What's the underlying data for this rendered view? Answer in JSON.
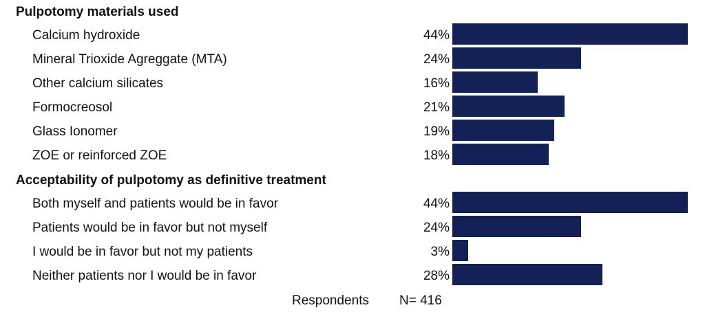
{
  "chart_data": {
    "type": "bar",
    "orientation": "horizontal",
    "bar_color": "#132157",
    "xlim": [
      0,
      44
    ],
    "sections": [
      {
        "title": "Pulpotomy materials used",
        "rows": [
          {
            "label": "Calcium hydroxide",
            "value": 44,
            "value_label": "44%"
          },
          {
            "label": "Mineral Trioxide Agreggate (MTA)",
            "value": 24,
            "value_label": "24%"
          },
          {
            "label": "Other calcium silicates",
            "value": 16,
            "value_label": "16%"
          },
          {
            "label": "Formocreosol",
            "value": 21,
            "value_label": "21%"
          },
          {
            "label": "Glass Ionomer",
            "value": 19,
            "value_label": "19%"
          },
          {
            "label": "ZOE or reinforced ZOE",
            "value": 18,
            "value_label": "18%"
          }
        ]
      },
      {
        "title": "Acceptability of pulpotomy as definitive treatment",
        "rows": [
          {
            "label": "Both myself and patients would be in favor",
            "value": 44,
            "value_label": "44%"
          },
          {
            "label": "Patients would be in favor but not myself",
            "value": 24,
            "value_label": "24%"
          },
          {
            "label": "I would be in favor but not my patients",
            "value": 3,
            "value_label": "3%"
          },
          {
            "label": "Neither patients nor I would be in favor",
            "value": 28,
            "value_label": "28%"
          }
        ]
      }
    ],
    "footer": {
      "label": "Respondents",
      "value": "N= 416"
    }
  }
}
